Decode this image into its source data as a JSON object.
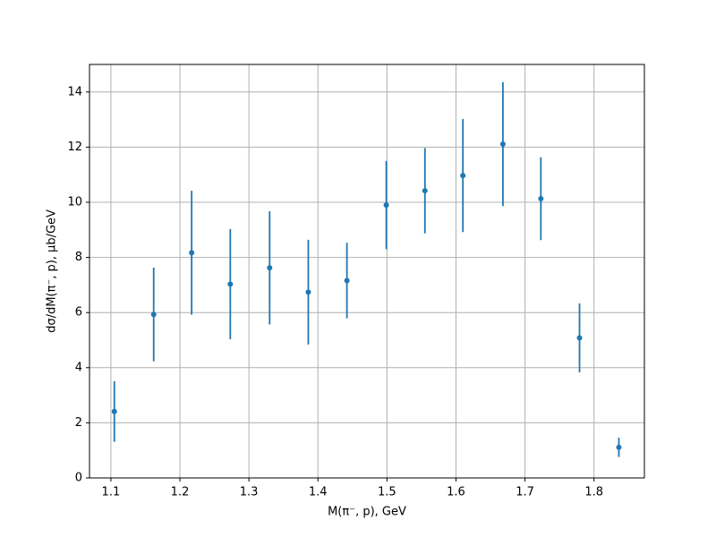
{
  "chart_data": {
    "type": "errorbar",
    "x_label": "M(π⁻, p), GeV",
    "y_label": "dσ/dM(π⁻, p), μb/GeV",
    "x": [
      1.105,
      1.162,
      1.217,
      1.273,
      1.33,
      1.386,
      1.442,
      1.499,
      1.555,
      1.61,
      1.668,
      1.723,
      1.779,
      1.836
    ],
    "series": [
      {
        "color": "#1f77b4",
        "values": [
          2.41,
          5.93,
          8.17,
          7.03,
          7.62,
          6.74,
          7.16,
          9.9,
          10.42,
          10.97,
          12.11,
          10.13,
          5.08,
          1.11
        ],
        "errors": [
          1.1,
          1.7,
          2.25,
          2.0,
          2.05,
          1.9,
          1.37,
          1.6,
          1.55,
          2.05,
          2.25,
          1.5,
          1.25,
          0.35
        ]
      }
    ],
    "xlim": [
      1.069,
      1.873
    ],
    "ylim": [
      0,
      15
    ],
    "xticks": [
      1.1,
      1.2,
      1.3,
      1.4,
      1.5,
      1.6,
      1.7,
      1.8
    ],
    "yticks": [
      0,
      2,
      4,
      6,
      8,
      10,
      12,
      14
    ],
    "grid": true
  }
}
